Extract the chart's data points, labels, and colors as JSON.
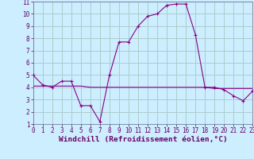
{
  "xlabel": "Windchill (Refroidissement éolien,°C)",
  "x": [
    0,
    1,
    2,
    3,
    4,
    5,
    6,
    7,
    8,
    9,
    10,
    11,
    12,
    13,
    14,
    15,
    16,
    17,
    18,
    19,
    20,
    21,
    22,
    23
  ],
  "y_main": [
    5.0,
    4.2,
    4.0,
    4.5,
    4.5,
    2.5,
    2.5,
    1.2,
    5.0,
    7.7,
    7.7,
    9.0,
    9.8,
    10.0,
    10.7,
    10.8,
    10.8,
    8.3,
    4.0,
    4.0,
    3.8,
    3.3,
    2.9,
    3.7
  ],
  "y_flat": [
    4.1,
    4.1,
    4.1,
    4.1,
    4.1,
    4.1,
    4.0,
    4.0,
    4.0,
    4.0,
    4.0,
    4.0,
    4.0,
    4.0,
    4.0,
    4.0,
    4.0,
    4.0,
    4.0,
    3.9,
    3.9,
    3.9,
    3.9,
    3.9
  ],
  "line_color": "#880088",
  "bg_color": "#cceeff",
  "grid_color": "#aacccc",
  "ylim": [
    1,
    11
  ],
  "xlim": [
    0,
    23
  ],
  "yticks": [
    1,
    2,
    3,
    4,
    5,
    6,
    7,
    8,
    9,
    10,
    11
  ],
  "xticks": [
    0,
    1,
    2,
    3,
    4,
    5,
    6,
    7,
    8,
    9,
    10,
    11,
    12,
    13,
    14,
    15,
    16,
    17,
    18,
    19,
    20,
    21,
    22,
    23
  ],
  "tick_fontsize": 5.5,
  "xlabel_fontsize": 6.8,
  "marker": "+"
}
